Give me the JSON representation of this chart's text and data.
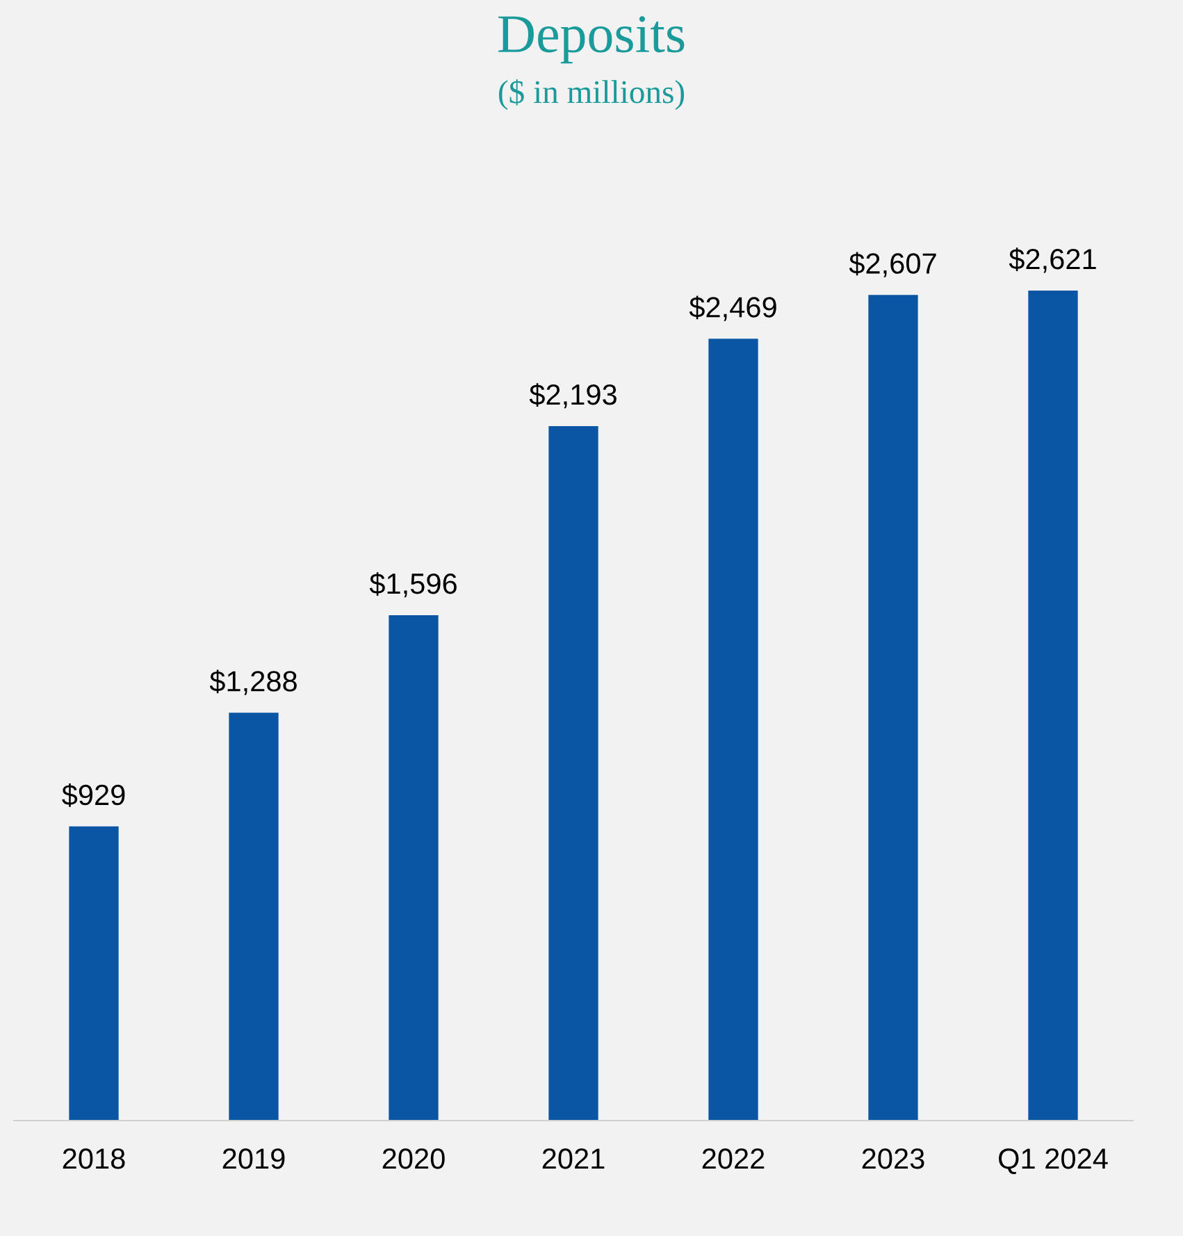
{
  "chart_data": {
    "type": "bar",
    "title": "Deposits",
    "subtitle": "($ in millions)",
    "categories": [
      "2018",
      "2019",
      "2020",
      "2021",
      "2022",
      "2023",
      "Q1 2024"
    ],
    "values": [
      929,
      1288,
      1596,
      2193,
      2469,
      2607,
      2621
    ],
    "value_labels": [
      "$929",
      "$1,288",
      "$1,596",
      "$2,193",
      "$2,469",
      "$2,607",
      "$2,621"
    ],
    "color": "#0a56a4",
    "grid": false,
    "legend": false
  }
}
